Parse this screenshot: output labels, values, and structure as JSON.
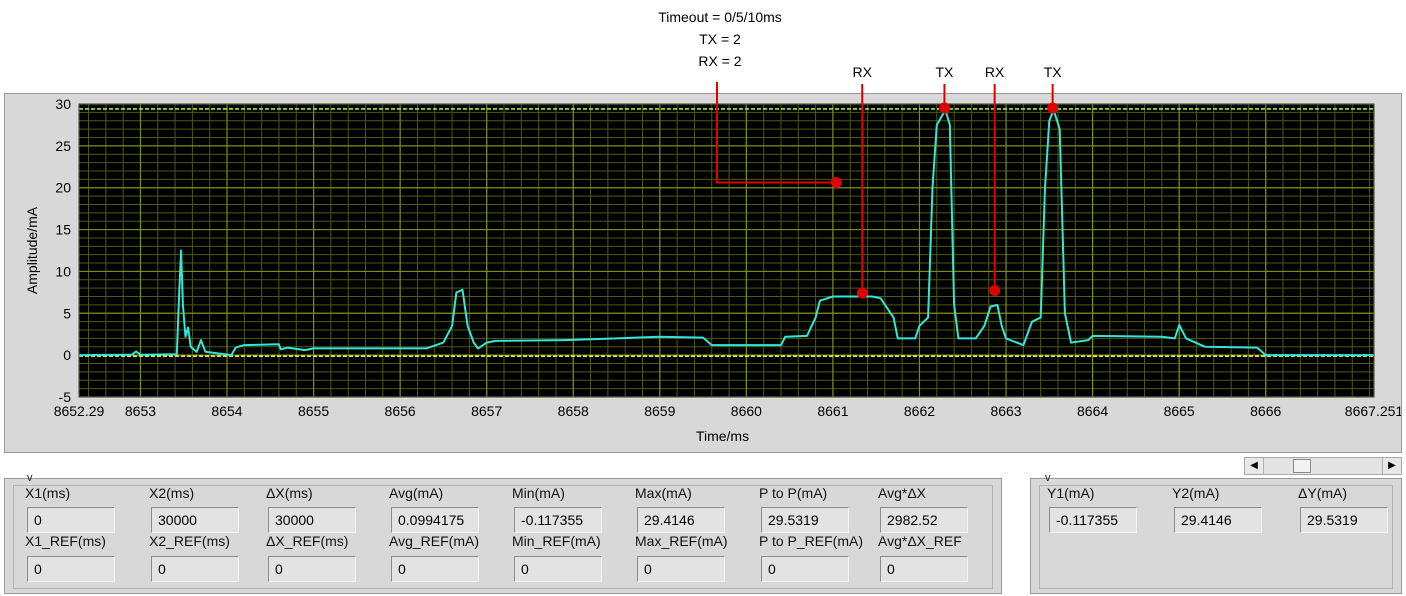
{
  "annotations": {
    "top_lines": [
      "Timeout = 0/5/10ms",
      "TX = 2",
      "RX = 2"
    ],
    "peak_labels": [
      {
        "text": "RX",
        "x": 8661.35,
        "y": 7.3
      },
      {
        "text": "TX",
        "x": 8662.3,
        "y": 29.4
      },
      {
        "text": "RX",
        "x": 8662.88,
        "y": 7.6
      },
      {
        "text": "TX",
        "x": 8663.55,
        "y": 29.4
      }
    ],
    "timeout_marker": {
      "x": 8661.05,
      "y": 20.5
    },
    "color": "#e00000"
  },
  "chart_data": {
    "type": "line",
    "xlabel": "Time/ms",
    "ylabel": "Amplitude/mA",
    "xlim": [
      8652.29,
      8667.251
    ],
    "ylim": [
      -5,
      30
    ],
    "x_ticks": [
      8652.29,
      8653,
      8654,
      8655,
      8656,
      8657,
      8658,
      8659,
      8660,
      8661,
      8662,
      8663,
      8664,
      8665,
      8666,
      8667.251
    ],
    "x_tick_labels": [
      "8652.29",
      "8653",
      "8654",
      "8655",
      "8656",
      "8657",
      "8658",
      "8659",
      "8660",
      "8661",
      "8662",
      "8663",
      "8664",
      "8665",
      "8666",
      "8667.251"
    ],
    "y_ticks": [
      -5,
      0,
      5,
      10,
      15,
      20,
      25,
      30
    ],
    "y_tick_labels": [
      "-5",
      "0",
      "5",
      "10",
      "15",
      "20",
      "25",
      "30"
    ],
    "grid": true,
    "colors": {
      "plot_bg": "#000000",
      "major_grid": "#7a8c14",
      "minor_grid": "#4c5a0c",
      "trace": "#33e6d8",
      "cursor1": "#ffff33",
      "cursor2": "#a6e63a"
    },
    "cursors": [
      {
        "name": "Y1",
        "y": -0.117355
      },
      {
        "name": "Y2",
        "y": 29.4146
      }
    ],
    "series": [
      {
        "values": [
          [
            8652.29,
            0.0
          ],
          [
            8652.9,
            0.05
          ],
          [
            8652.95,
            0.45
          ],
          [
            8653.0,
            0.05
          ],
          [
            8653.42,
            0.1
          ],
          [
            8653.45,
            8.0
          ],
          [
            8653.47,
            12.5
          ],
          [
            8653.49,
            6.0
          ],
          [
            8653.52,
            2.2
          ],
          [
            8653.55,
            3.3
          ],
          [
            8653.58,
            1.0
          ],
          [
            8653.65,
            0.4
          ],
          [
            8653.7,
            1.8
          ],
          [
            8653.75,
            0.4
          ],
          [
            8654.05,
            0.0
          ],
          [
            8654.1,
            0.9
          ],
          [
            8654.2,
            1.2
          ],
          [
            8654.6,
            1.3
          ],
          [
            8654.62,
            0.7
          ],
          [
            8654.7,
            0.9
          ],
          [
            8654.9,
            0.6
          ],
          [
            8655.0,
            0.8
          ],
          [
            8656.3,
            0.8
          ],
          [
            8656.5,
            1.5
          ],
          [
            8656.6,
            3.5
          ],
          [
            8656.65,
            7.5
          ],
          [
            8656.72,
            7.8
          ],
          [
            8656.78,
            3.5
          ],
          [
            8656.85,
            1.5
          ],
          [
            8656.9,
            0.8
          ],
          [
            8657.0,
            1.5
          ],
          [
            8657.1,
            1.7
          ],
          [
            8657.9,
            1.8
          ],
          [
            8658.5,
            2.0
          ],
          [
            8659.0,
            2.2
          ],
          [
            8659.5,
            2.1
          ],
          [
            8659.6,
            1.2
          ],
          [
            8660.4,
            1.2
          ],
          [
            8660.45,
            2.2
          ],
          [
            8660.7,
            2.3
          ],
          [
            8660.8,
            4.5
          ],
          [
            8660.85,
            6.5
          ],
          [
            8661.0,
            7.0
          ],
          [
            8661.45,
            7.0
          ],
          [
            8661.55,
            6.8
          ],
          [
            8661.7,
            4.5
          ],
          [
            8661.75,
            2.0
          ],
          [
            8661.95,
            2.0
          ],
          [
            8662.0,
            3.5
          ],
          [
            8662.1,
            4.5
          ],
          [
            8662.15,
            20.0
          ],
          [
            8662.2,
            27.5
          ],
          [
            8662.3,
            29.3
          ],
          [
            8662.35,
            27.5
          ],
          [
            8662.4,
            6.0
          ],
          [
            8662.45,
            2.0
          ],
          [
            8662.65,
            2.0
          ],
          [
            8662.75,
            3.5
          ],
          [
            8662.82,
            5.8
          ],
          [
            8662.9,
            6.0
          ],
          [
            8662.95,
            3.5
          ],
          [
            8663.0,
            2.0
          ],
          [
            8663.2,
            1.2
          ],
          [
            8663.3,
            4.0
          ],
          [
            8663.4,
            4.5
          ],
          [
            8663.45,
            20.0
          ],
          [
            8663.5,
            28.0
          ],
          [
            8663.55,
            29.3
          ],
          [
            8663.62,
            27.0
          ],
          [
            8663.68,
            5.0
          ],
          [
            8663.75,
            1.5
          ],
          [
            8663.95,
            1.8
          ],
          [
            8664.0,
            2.3
          ],
          [
            8664.8,
            2.2
          ],
          [
            8664.95,
            2.0
          ],
          [
            8665.0,
            3.6
          ],
          [
            8665.08,
            2.0
          ],
          [
            8665.3,
            1.0
          ],
          [
            8665.9,
            0.9
          ],
          [
            8666.0,
            0.0
          ],
          [
            8667.251,
            0.0
          ]
        ]
      }
    ]
  },
  "scrollbar": {
    "left_arrow": "◀",
    "right_arrow": "▶"
  },
  "measurements": {
    "corner_label": "v",
    "fields": [
      {
        "label": "X1(ms)",
        "value": "0"
      },
      {
        "label": "X2(ms)",
        "value": "30000"
      },
      {
        "label": "ΔX(ms)",
        "value": "30000"
      },
      {
        "label": "Avg(mA)",
        "value": "0.0994175"
      },
      {
        "label": "Min(mA)",
        "value": "-0.117355"
      },
      {
        "label": "Max(mA)",
        "value": "29.4146"
      },
      {
        "label": "P to P(mA)",
        "value": "29.5319"
      },
      {
        "label": "Avg*ΔX",
        "value": "2982.52"
      }
    ],
    "ref_fields": [
      {
        "label": "X1_REF(ms)",
        "value": "0"
      },
      {
        "label": "X2_REF(ms)",
        "value": "0"
      },
      {
        "label": "ΔX_REF(ms)",
        "value": "0"
      },
      {
        "label": "Avg_REF(mA)",
        "value": "0"
      },
      {
        "label": "Min_REF(mA)",
        "value": "0"
      },
      {
        "label": "Max_REF(mA)",
        "value": "0"
      },
      {
        "label": "P to P_REF(mA)",
        "value": "0"
      },
      {
        "label": "Avg*ΔX_REF",
        "value": "0"
      }
    ]
  },
  "y_measurements": {
    "corner_label": "v",
    "fields": [
      {
        "label": "Y1(mA)",
        "value": "-0.117355"
      },
      {
        "label": "Y2(mA)",
        "value": "29.4146"
      },
      {
        "label": "ΔY(mA)",
        "value": "29.5319"
      }
    ]
  }
}
